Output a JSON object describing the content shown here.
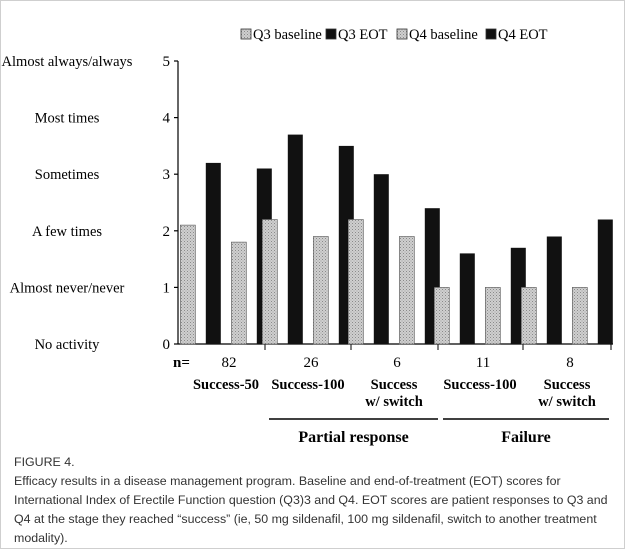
{
  "chart_data": {
    "type": "bar",
    "legend": {
      "placement": "top-right",
      "entries": [
        "Q3 baseline",
        "Q3 EOT",
        "Q4 baseline",
        "Q4 EOT"
      ]
    },
    "ylim": [
      0,
      5
    ],
    "yticks": [
      {
        "value": 0,
        "number": "0",
        "label": "No activity"
      },
      {
        "value": 1,
        "number": "1",
        "label": "Almost never/never"
      },
      {
        "value": 2,
        "number": "2",
        "label": "A few times"
      },
      {
        "value": 3,
        "number": "3",
        "label": "Sometimes"
      },
      {
        "value": 4,
        "number": "4",
        "label": "Most times"
      },
      {
        "value": 5,
        "number": "5",
        "label": "Almost always/always"
      }
    ],
    "n_prefix": "n=",
    "categories": [
      {
        "n": "82",
        "label": [
          "Success-50"
        ]
      },
      {
        "n": "26",
        "label": [
          "Success-100"
        ]
      },
      {
        "n": "6",
        "label": [
          "Success",
          "w/ switch"
        ]
      },
      {
        "n": "11",
        "label": [
          "Success-100"
        ]
      },
      {
        "n": "8",
        "label": [
          "Success",
          "w/ switch"
        ]
      }
    ],
    "series": [
      {
        "name": "Q3 baseline",
        "values": [
          2.1,
          2.2,
          2.2,
          1.0,
          1.0
        ]
      },
      {
        "name": "Q3 EOT",
        "values": [
          3.2,
          3.7,
          3.0,
          1.6,
          1.9
        ]
      },
      {
        "name": "Q4 baseline",
        "values": [
          1.8,
          1.9,
          1.9,
          1.0,
          1.0
        ]
      },
      {
        "name": "Q4 EOT",
        "values": [
          3.1,
          3.5,
          2.4,
          1.7,
          2.2
        ]
      }
    ],
    "groups": [
      {
        "label": "Partial response",
        "categories": [
          1,
          2
        ]
      },
      {
        "label": "Failure",
        "categories": [
          3,
          4
        ]
      }
    ],
    "colors": {
      "baseline": "#c8c8c8",
      "eot": "#111111"
    }
  },
  "caption": {
    "figure_label": "FIGURE 4.",
    "text": "Efficacy results in a disease management program. Baseline and end-of-treatment (EOT) scores for International Index of Erectile Function question (Q3)3 and Q4. EOT scores are patient responses to Q3 and Q4 at the stage they reached “success” (ie, 50 mg sildenafil, 100 mg sildenafil, switch to another treatment modality)."
  }
}
